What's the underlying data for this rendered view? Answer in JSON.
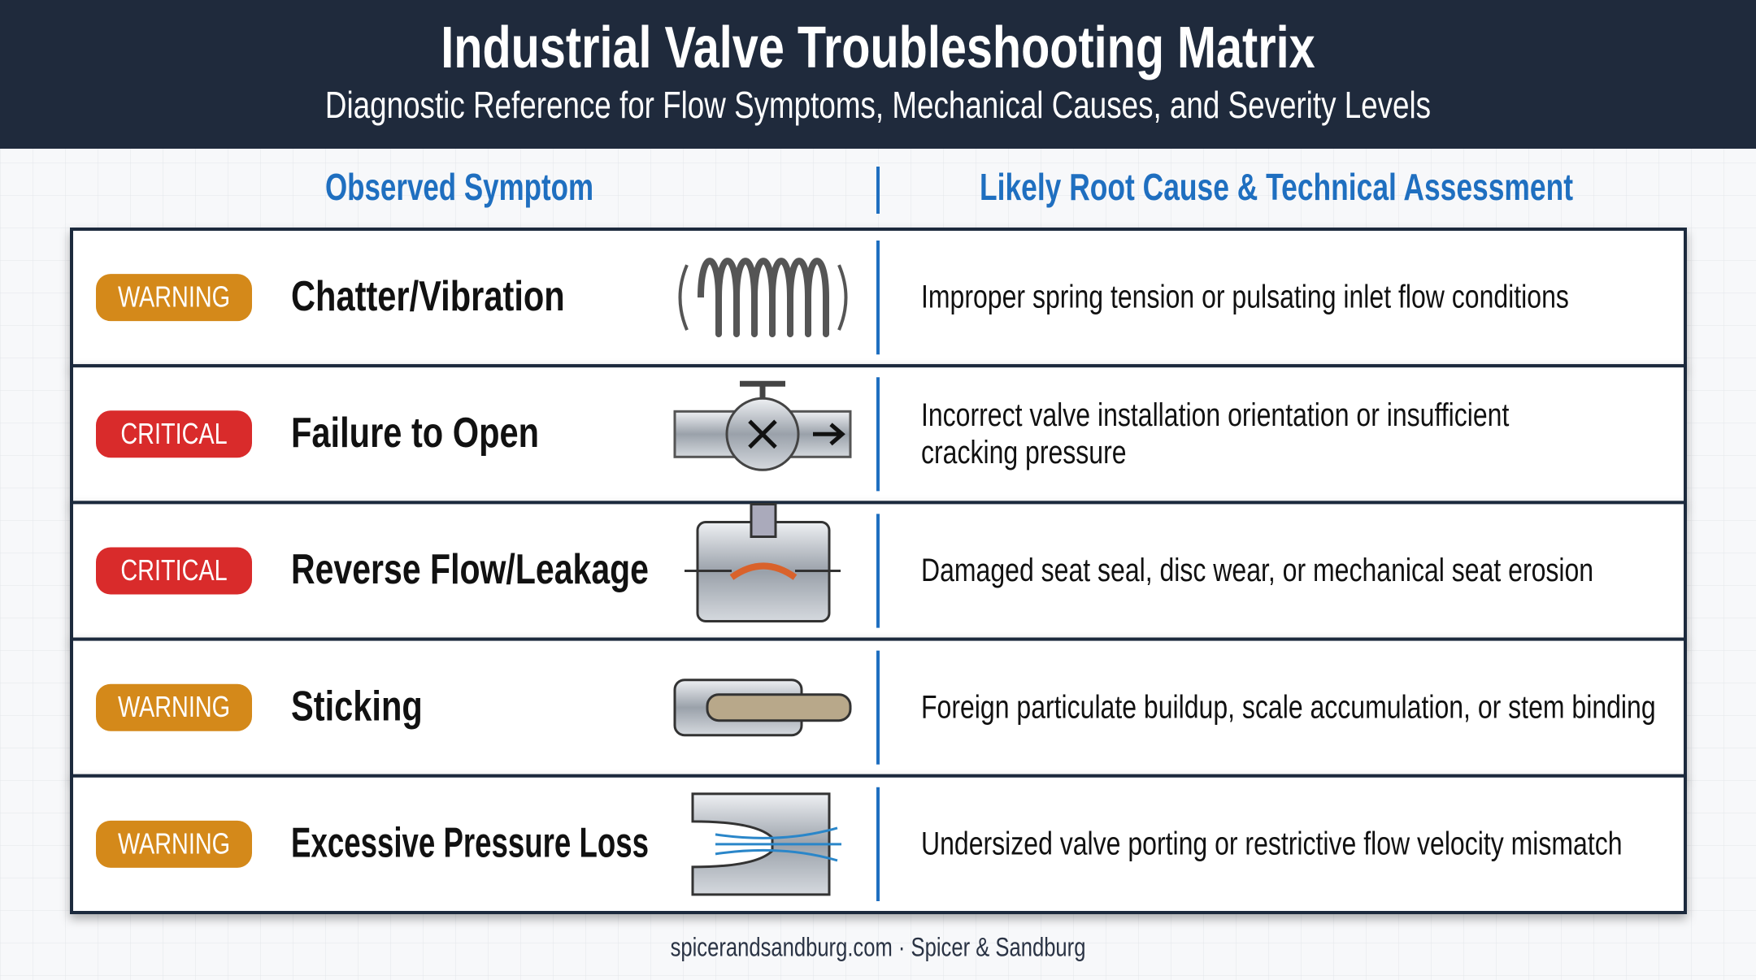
{
  "header": {
    "title": "Industrial Valve Troubleshooting Matrix",
    "subtitle": "Diagnostic Reference for Flow Symptoms, Mechanical Causes, and Severity Levels"
  },
  "columns": [
    "Observed Symptom",
    "Likely Root Cause & Technical Assessment"
  ],
  "rows": [
    {
      "severity": "WARNING",
      "symptom": "Chatter/Vibration",
      "cause": [
        "Improper spring tension or pulsating inlet flow conditions"
      ]
    },
    {
      "severity": "CRITICAL",
      "symptom": "Failure to Open",
      "cause": [
        "Incorrect valve installation orientation or insufficient",
        "cracking pressure"
      ]
    },
    {
      "severity": "CRITICAL",
      "symptom": "Reverse Flow/Leakage",
      "cause": [
        "Damaged seat seal, disc wear, or mechanical seat erosion"
      ]
    },
    {
      "severity": "WARNING",
      "symptom": "Sticking",
      "cause": [
        "Foreign particulate buildup, scale accumulation, or stem binding"
      ]
    },
    {
      "severity": "WARNING",
      "symptom": "Excessive Pressure Loss",
      "cause": [
        "Undersized valve porting or restrictive flow velocity mismatch"
      ]
    }
  ],
  "footer": "spicerandsandburg.com · Spicer & Sandburg"
}
